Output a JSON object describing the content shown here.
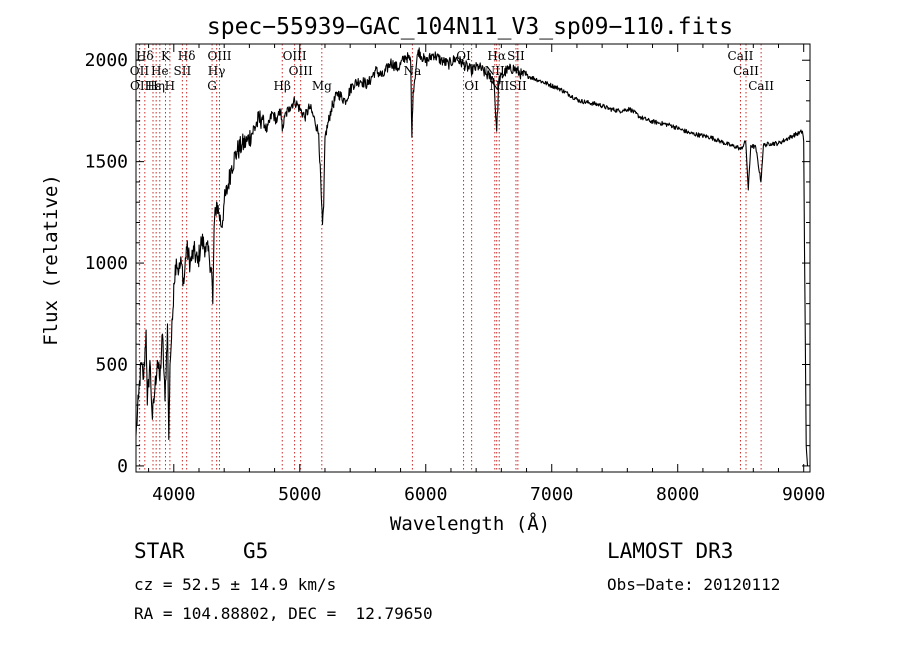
{
  "chart_data": {
    "type": "line",
    "title": "spec−55939−GAC_104N11_V3_sp09−110.fits",
    "xlabel": "Wavelength (Å)",
    "ylabel": "Flux (relative)",
    "xlim": [
      3700,
      9050
    ],
    "ylim": [
      -30,
      2080
    ],
    "x_ticks": [
      4000,
      5000,
      6000,
      7000,
      8000,
      9000
    ],
    "x_tick_labels": [
      "4000",
      "5000",
      "6000",
      "7000",
      "8000",
      "9000"
    ],
    "y_ticks": [
      0,
      500,
      1000,
      1500,
      2000
    ],
    "y_tick_labels": [
      "0",
      "500",
      "1000",
      "1500",
      "2000"
    ],
    "series": [
      {
        "name": "flux",
        "points": [
          [
            3700,
            150
          ],
          [
            3720,
            330
          ],
          [
            3740,
            500
          ],
          [
            3760,
            430
          ],
          [
            3780,
            670
          ],
          [
            3790,
            300
          ],
          [
            3810,
            520
          ],
          [
            3830,
            230
          ],
          [
            3850,
            380
          ],
          [
            3870,
            520
          ],
          [
            3890,
            420
          ],
          [
            3910,
            650
          ],
          [
            3930,
            320
          ],
          [
            3950,
            700
          ],
          [
            3960,
            130
          ],
          [
            3970,
            500
          ],
          [
            3990,
            720
          ],
          [
            4000,
            900
          ],
          [
            4020,
            1020
          ],
          [
            4040,
            960
          ],
          [
            4060,
            1000
          ],
          [
            4080,
            900
          ],
          [
            4100,
            1080
          ],
          [
            4130,
            1000
          ],
          [
            4160,
            1060
          ],
          [
            4190,
            1000
          ],
          [
            4220,
            1110
          ],
          [
            4250,
            1080
          ],
          [
            4280,
            1040
          ],
          [
            4300,
            960
          ],
          [
            4310,
            800
          ],
          [
            4320,
            1180
          ],
          [
            4340,
            1300
          ],
          [
            4360,
            1240
          ],
          [
            4380,
            1180
          ],
          [
            4400,
            1300
          ],
          [
            4430,
            1380
          ],
          [
            4460,
            1480
          ],
          [
            4500,
            1550
          ],
          [
            4540,
            1580
          ],
          [
            4580,
            1600
          ],
          [
            4620,
            1640
          ],
          [
            4660,
            1690
          ],
          [
            4700,
            1720
          ],
          [
            4740,
            1650
          ],
          [
            4780,
            1740
          ],
          [
            4820,
            1700
          ],
          [
            4850,
            1760
          ],
          [
            4861,
            1650
          ],
          [
            4880,
            1720
          ],
          [
            4920,
            1770
          ],
          [
            4960,
            1800
          ],
          [
            5000,
            1760
          ],
          [
            5040,
            1720
          ],
          [
            5080,
            1770
          ],
          [
            5120,
            1700
          ],
          [
            5150,
            1640
          ],
          [
            5170,
            1340
          ],
          [
            5180,
            1190
          ],
          [
            5190,
            1280
          ],
          [
            5200,
            1620
          ],
          [
            5250,
            1760
          ],
          [
            5300,
            1840
          ],
          [
            5360,
            1800
          ],
          [
            5420,
            1880
          ],
          [
            5480,
            1900
          ],
          [
            5540,
            1880
          ],
          [
            5600,
            1950
          ],
          [
            5660,
            1920
          ],
          [
            5720,
            1990
          ],
          [
            5780,
            1960
          ],
          [
            5840,
            2020
          ],
          [
            5880,
            2000
          ],
          [
            5890,
            1620
          ],
          [
            5900,
            1850
          ],
          [
            5940,
            2050
          ],
          [
            6000,
            1990
          ],
          [
            6060,
            2030
          ],
          [
            6120,
            2000
          ],
          [
            6180,
            1980
          ],
          [
            6240,
            2010
          ],
          [
            6300,
            1980
          ],
          [
            6360,
            1950
          ],
          [
            6420,
            1970
          ],
          [
            6480,
            1930
          ],
          [
            6540,
            1910
          ],
          [
            6563,
            1650
          ],
          [
            6580,
            1900
          ],
          [
            6640,
            1950
          ],
          [
            6700,
            1960
          ],
          [
            6760,
            1930
          ],
          [
            6820,
            1920
          ],
          [
            6900,
            1900
          ],
          [
            6980,
            1880
          ],
          [
            7060,
            1860
          ],
          [
            7140,
            1830
          ],
          [
            7220,
            1800
          ],
          [
            7300,
            1790
          ],
          [
            7380,
            1780
          ],
          [
            7460,
            1760
          ],
          [
            7540,
            1750
          ],
          [
            7620,
            1760
          ],
          [
            7700,
            1720
          ],
          [
            7780,
            1700
          ],
          [
            7860,
            1690
          ],
          [
            7940,
            1680
          ],
          [
            8020,
            1660
          ],
          [
            8100,
            1640
          ],
          [
            8180,
            1630
          ],
          [
            8260,
            1620
          ],
          [
            8340,
            1600
          ],
          [
            8420,
            1580
          ],
          [
            8480,
            1570
          ],
          [
            8500,
            1560
          ],
          [
            8540,
            1600
          ],
          [
            8560,
            1360
          ],
          [
            8580,
            1580
          ],
          [
            8620,
            1570
          ],
          [
            8660,
            1400
          ],
          [
            8680,
            1580
          ],
          [
            8740,
            1590
          ],
          [
            8800,
            1590
          ],
          [
            8860,
            1610
          ],
          [
            8920,
            1630
          ],
          [
            8960,
            1640
          ],
          [
            8990,
            1650
          ],
          [
            9000,
            1600
          ],
          [
            9010,
            800
          ],
          [
            9020,
            100
          ],
          [
            9030,
            0
          ]
        ]
      }
    ],
    "lines": [
      {
        "label": "Hδ",
        "wl": 3770,
        "row": 1
      },
      {
        "label": "OII",
        "wl": 3727,
        "row": 2
      },
      {
        "label": "OII",
        "wl": 3729,
        "row": 3
      },
      {
        "label": "Hε",
        "wl": 3835,
        "row": 3
      },
      {
        "label": "He",
        "wl": 3889,
        "row": 2
      },
      {
        "label": "K",
        "wl": 3934,
        "row": 1
      },
      {
        "label": "Hη",
        "wl": 3860,
        "row": 3
      },
      {
        "label": "H",
        "wl": 3969,
        "row": 3
      },
      {
        "label": "SII",
        "wl": 4068,
        "row": 2
      },
      {
        "label": "Hδ",
        "wl": 4102,
        "row": 1
      },
      {
        "label": "OIII",
        "wl": 4363,
        "row": 1
      },
      {
        "label": "Hγ",
        "wl": 4340,
        "row": 2
      },
      {
        "label": "G",
        "wl": 4304,
        "row": 3
      },
      {
        "label": "Hβ",
        "wl": 4861,
        "row": 3
      },
      {
        "label": "OIII",
        "wl": 4959,
        "row": 1
      },
      {
        "label": "OIII",
        "wl": 5007,
        "row": 2
      },
      {
        "label": "Mg",
        "wl": 5175,
        "row": 3
      },
      {
        "label": "Na",
        "wl": 5894,
        "row": 2
      },
      {
        "label": "OI",
        "wl": 6300,
        "row": 1
      },
      {
        "label": "OI",
        "wl": 6364,
        "row": 3
      },
      {
        "label": "Hα",
        "wl": 6563,
        "row": 1
      },
      {
        "label": "SII",
        "wl": 6716,
        "row": 1
      },
      {
        "label": "NII",
        "wl": 6548,
        "row": 2
      },
      {
        "label": "NII",
        "wl": 6583,
        "row": 3
      },
      {
        "label": "SII",
        "wl": 6731,
        "row": 3
      },
      {
        "label": "CaII",
        "wl": 8498,
        "row": 1
      },
      {
        "label": "CaII",
        "wl": 8542,
        "row": 2
      },
      {
        "label": "CaII",
        "wl": 8662,
        "row": 3
      }
    ]
  },
  "info": {
    "obj_class": "STAR",
    "subclass": "G5",
    "survey": "LAMOST DR3",
    "cz": "cz = 52.5 ± 14.9 km/s",
    "obs_date": "Obs−Date: 20120112",
    "radec": "RA = 104.88802, DEC =  12.79650"
  },
  "colors": {
    "line": "#000000",
    "marker": "#cc2a2a",
    "background": "#ffffff"
  }
}
